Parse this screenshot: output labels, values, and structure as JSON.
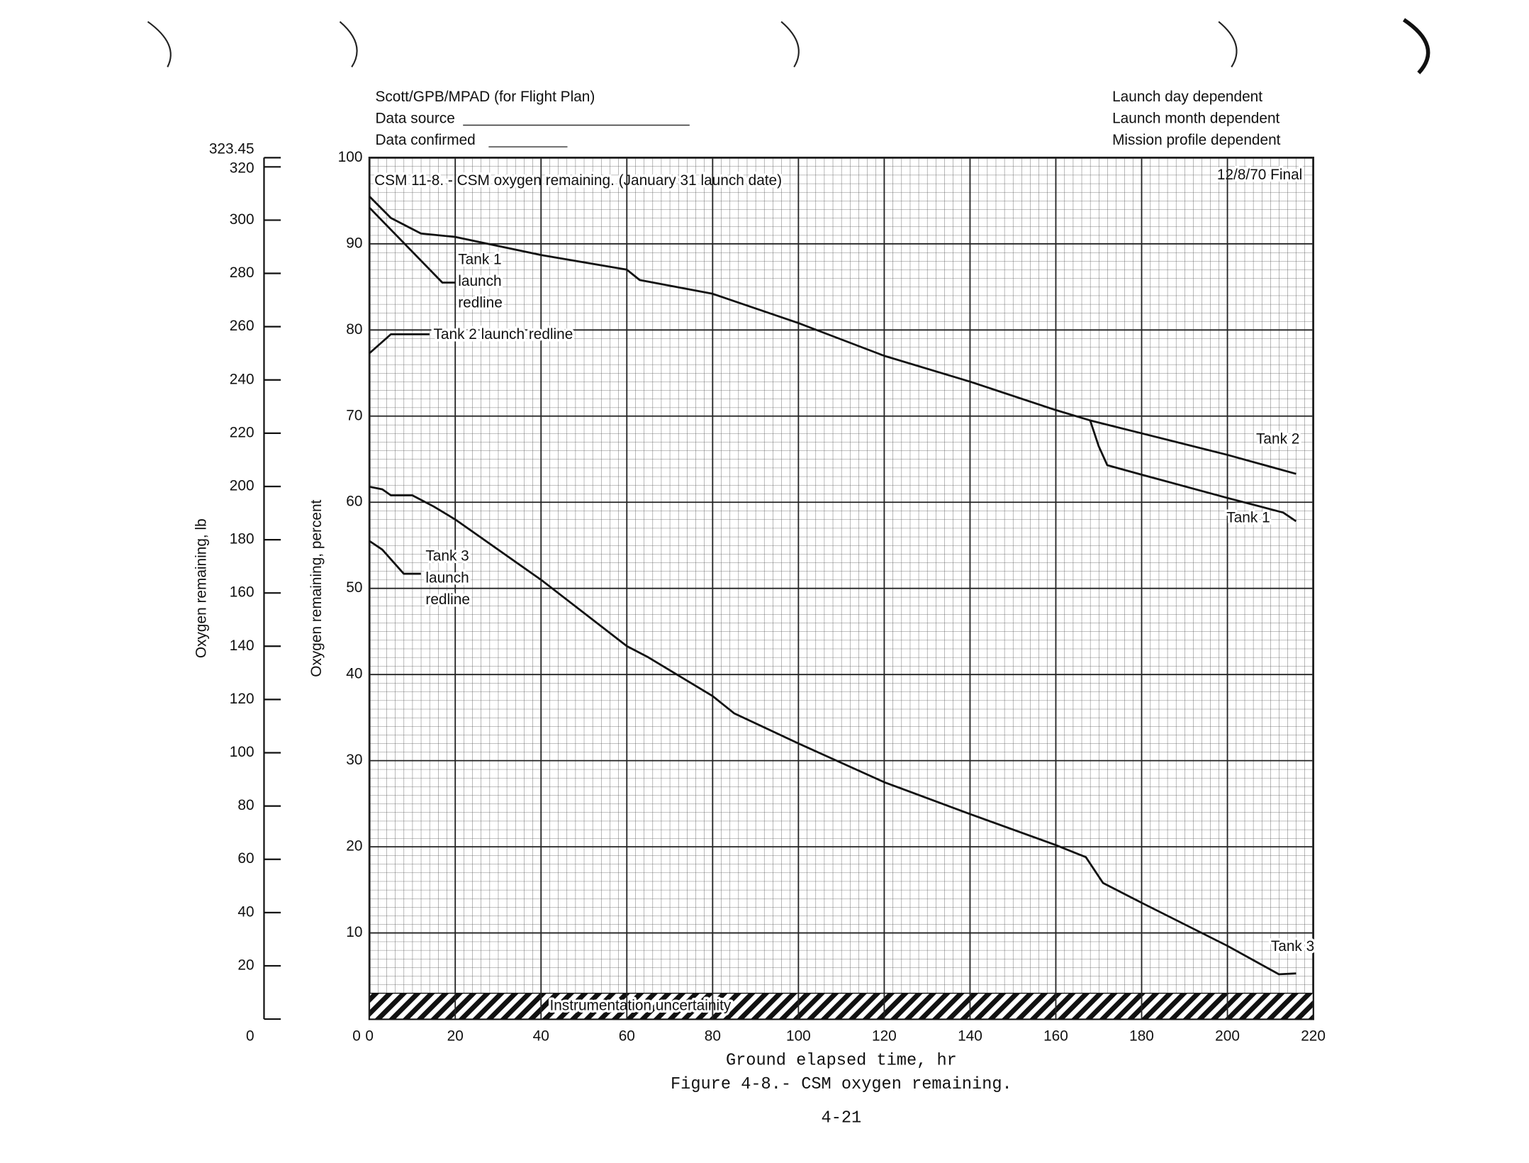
{
  "chart_data": {
    "type": "line",
    "header_left": [
      "Scott/GPB/MPAD  (for Flight Plan)",
      "Data source",
      "Data confirmed"
    ],
    "header_right": [
      "Launch day dependent",
      "Launch month dependent",
      "Mission profile dependent"
    ],
    "title": "CSM 11-8. - CSM oxygen remaining. (January 31 launch date)",
    "date_note": "12/8/70   Final",
    "xlabel": "Ground elapsed time, hr",
    "ylabel": "Oxygen remaining, percent",
    "y2label": "Oxygen remaining, lb",
    "caption": "Figure 4-8.- CSM oxygen remaining.",
    "page_number": "4-21",
    "xlim": [
      0,
      220
    ],
    "xticks": [
      0,
      20,
      40,
      60,
      80,
      100,
      120,
      140,
      160,
      180,
      200,
      220
    ],
    "ylim": [
      0,
      100
    ],
    "yticks": [
      10,
      20,
      30,
      40,
      50,
      60,
      70,
      80,
      90,
      100
    ],
    "y2lim": [
      0,
      323.45
    ],
    "y2ticks": [
      0,
      20,
      40,
      60,
      80,
      100,
      120,
      140,
      160,
      180,
      200,
      220,
      240,
      260,
      280,
      300,
      320,
      323.45
    ],
    "grid": true,
    "uncertainty_band": {
      "label": "Instrumentation uncertainity",
      "range": [
        0,
        3
      ]
    },
    "series": [
      {
        "name": "Tank 2",
        "color": "#111111",
        "x": [
          0,
          5,
          12,
          20,
          40,
          60,
          63,
          80,
          100,
          120,
          140,
          160,
          168,
          180,
          200,
          216
        ],
        "values": [
          95.5,
          93,
          91.2,
          90.8,
          88.7,
          87,
          85.8,
          84.2,
          80.8,
          77,
          74,
          70.7,
          69.5,
          68,
          65.5,
          63.3
        ]
      },
      {
        "name": "Tank 1",
        "color": "#111111",
        "x": [
          168,
          170,
          172,
          180,
          200,
          213,
          216
        ],
        "values": [
          69.5,
          66.5,
          64.3,
          63.2,
          60.5,
          58.8,
          57.8
        ]
      },
      {
        "name": "Tank 3",
        "color": "#111111",
        "x": [
          0,
          3,
          5,
          10,
          15,
          20,
          40,
          60,
          65,
          80,
          85,
          100,
          120,
          140,
          160,
          167,
          171,
          180,
          200,
          212,
          216
        ],
        "values": [
          61.8,
          61.5,
          60.8,
          60.8,
          59.5,
          58,
          51,
          43.3,
          42,
          37.5,
          35.5,
          32,
          27.5,
          23.8,
          20.2,
          18.8,
          15.8,
          13.5,
          8.5,
          5.2,
          5.3
        ]
      },
      {
        "label_lines": [
          "Tank 1",
          "launch",
          "redline"
        ],
        "color": "#111111",
        "x": [
          0,
          17,
          20
        ],
        "values": [
          94.2,
          85.5,
          85.5
        ]
      },
      {
        "label_lines": [
          "Tank 2 launch redline"
        ],
        "color": "#111111",
        "x": [
          0,
          5,
          14
        ],
        "values": [
          77.3,
          79.5,
          79.5
        ]
      },
      {
        "label_lines": [
          "Tank 3",
          "launch",
          "redline"
        ],
        "color": "#111111",
        "x": [
          0,
          3,
          8,
          12
        ],
        "values": [
          55.5,
          54.5,
          51.7,
          51.7
        ]
      }
    ]
  }
}
